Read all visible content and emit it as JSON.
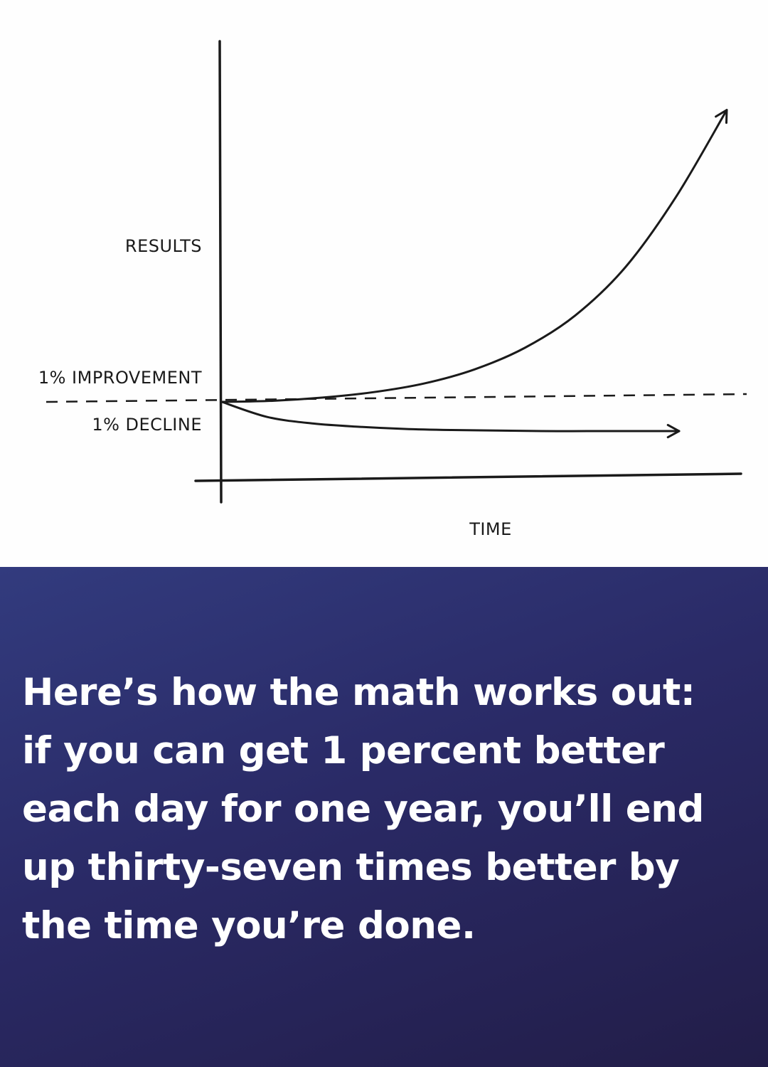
{
  "chart_data": {
    "type": "line",
    "title": "",
    "xlabel": "TIME",
    "ylabel": "RESULTS",
    "annotations": [
      "1% IMPROVEMENT",
      "1% DECLINE"
    ],
    "x": [
      0,
      0.1,
      0.2,
      0.3,
      0.4,
      0.5,
      0.6,
      0.7,
      0.8,
      0.9,
      1.0
    ],
    "baseline": 1.0,
    "series": [
      {
        "name": "1% IMPROVEMENT",
        "values": [
          1.0,
          1.01,
          1.04,
          1.09,
          1.17,
          1.3,
          1.5,
          1.8,
          2.25,
          2.9,
          3.7
        ]
      },
      {
        "name": "1% DECLINE",
        "values": [
          1.0,
          0.86,
          0.8,
          0.77,
          0.75,
          0.74,
          0.735,
          0.73,
          0.73,
          0.73,
          0.73
        ]
      }
    ],
    "xlim": [
      0,
      1
    ],
    "ylim": [
      0.5,
      4.0
    ],
    "grid": false,
    "legend": "none"
  },
  "caption": {
    "lines": [
      "Here’s how the math works out:",
      "if you can get 1 percent better",
      "each day for one year, you’ll end",
      "up thirty-seven times better by",
      "the time you’re done."
    ]
  },
  "colors": {
    "ink": "#1a1a1a",
    "panel_top": "#323b7e",
    "panel_bottom": "#221d48",
    "caption_text": "#ffffff"
  }
}
